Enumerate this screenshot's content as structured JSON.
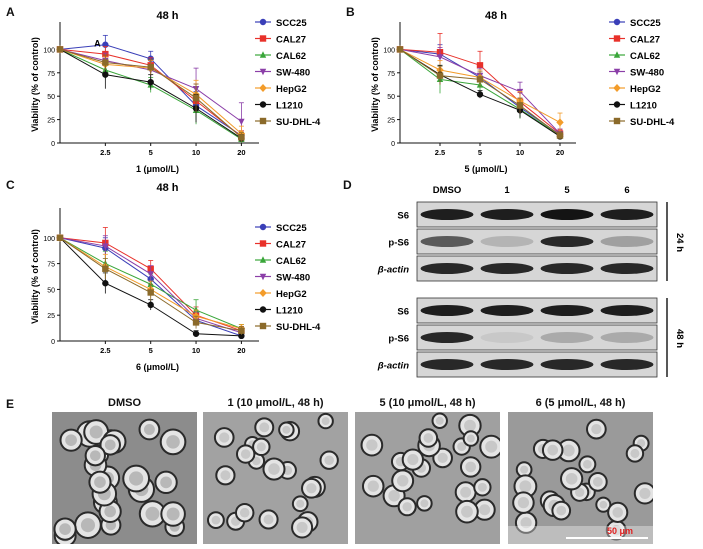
{
  "panels": {
    "A": "A",
    "B": "B",
    "C": "C",
    "D": "D",
    "E": "E"
  },
  "chart_data": [
    {
      "id": "A",
      "type": "line",
      "title": "48 h",
      "xlabel": "1 (μmol/L)",
      "ylabel": "Viability (% of control)",
      "annotation": "A",
      "categories": [
        "0",
        "2.5",
        "5",
        "10",
        "20"
      ],
      "xticks": [
        "2.5",
        "5",
        "10",
        "20"
      ],
      "yticks": [
        0,
        25,
        50,
        75,
        100
      ],
      "ylim": [
        0,
        125
      ],
      "series": [
        {
          "name": "SCC25",
          "color": "#3a3fb8",
          "marker": "circle",
          "values": [
            100,
            105,
            90,
            40,
            8
          ],
          "err": [
            0,
            10,
            8,
            15,
            5
          ]
        },
        {
          "name": "CAL27",
          "color": "#e8312a",
          "marker": "square",
          "values": [
            100,
            95,
            83,
            45,
            7
          ],
          "err": [
            0,
            8,
            8,
            18,
            6
          ]
        },
        {
          "name": "CAL62",
          "color": "#3aa63a",
          "marker": "triangle",
          "values": [
            100,
            78,
            62,
            35,
            4
          ],
          "err": [
            0,
            10,
            8,
            15,
            5
          ]
        },
        {
          "name": "SW-480",
          "color": "#8b3fa8",
          "marker": "triangle-down",
          "values": [
            100,
            88,
            78,
            58,
            23
          ],
          "err": [
            0,
            8,
            10,
            22,
            20
          ]
        },
        {
          "name": "HepG2",
          "color": "#f39c2a",
          "marker": "diamond",
          "values": [
            100,
            84,
            80,
            52,
            10
          ],
          "err": [
            0,
            8,
            8,
            15,
            8
          ]
        },
        {
          "name": "L1210",
          "color": "#111111",
          "marker": "circle",
          "values": [
            100,
            73,
            65,
            37,
            5
          ],
          "err": [
            0,
            15,
            8,
            15,
            4
          ]
        },
        {
          "name": "SU-DHL-4",
          "color": "#8b6a2a",
          "marker": "square",
          "values": [
            100,
            86,
            81,
            48,
            6
          ],
          "err": [
            0,
            8,
            8,
            15,
            5
          ]
        }
      ]
    },
    {
      "id": "B",
      "type": "line",
      "title": "48 h",
      "xlabel": "5 (μmol/L)",
      "ylabel": "Viability (% of control)",
      "categories": [
        "0",
        "2.5",
        "5",
        "10",
        "20"
      ],
      "xticks": [
        "2.5",
        "5",
        "10",
        "20"
      ],
      "yticks": [
        0,
        25,
        50,
        75,
        100
      ],
      "ylim": [
        0,
        125
      ],
      "series": [
        {
          "name": "SCC25",
          "color": "#3a3fb8",
          "marker": "circle",
          "values": [
            100,
            95,
            70,
            38,
            9
          ],
          "err": [
            0,
            10,
            8,
            10,
            4
          ]
        },
        {
          "name": "CAL27",
          "color": "#e8312a",
          "marker": "square",
          "values": [
            100,
            97,
            83,
            44,
            10
          ],
          "err": [
            0,
            20,
            15,
            10,
            4
          ]
        },
        {
          "name": "CAL62",
          "color": "#3aa63a",
          "marker": "triangle",
          "values": [
            100,
            68,
            62,
            36,
            8
          ],
          "err": [
            0,
            15,
            8,
            10,
            4
          ]
        },
        {
          "name": "SW-480",
          "color": "#8b3fa8",
          "marker": "triangle-down",
          "values": [
            100,
            92,
            72,
            55,
            10
          ],
          "err": [
            0,
            10,
            8,
            10,
            5
          ]
        },
        {
          "name": "HepG2",
          "color": "#f39c2a",
          "marker": "diamond",
          "values": [
            100,
            78,
            70,
            45,
            22
          ],
          "err": [
            0,
            10,
            8,
            10,
            10
          ]
        },
        {
          "name": "L1210",
          "color": "#111111",
          "marker": "circle",
          "values": [
            100,
            73,
            52,
            35,
            7
          ],
          "err": [
            0,
            10,
            4,
            8,
            3
          ]
        },
        {
          "name": "SU-DHL-4",
          "color": "#8b6a2a",
          "marker": "square",
          "values": [
            100,
            72,
            68,
            40,
            8
          ],
          "err": [
            0,
            10,
            8,
            8,
            4
          ]
        }
      ]
    },
    {
      "id": "C",
      "type": "line",
      "title": "48 h",
      "xlabel": "6 (μmol/L)",
      "ylabel": "Viability (% of control)",
      "categories": [
        "0",
        "2.5",
        "5",
        "10",
        "20"
      ],
      "xticks": [
        "2.5",
        "5",
        "10",
        "20"
      ],
      "yticks": [
        0,
        25,
        50,
        75,
        100
      ],
      "ylim": [
        0,
        125
      ],
      "series": [
        {
          "name": "SCC25",
          "color": "#3a3fb8",
          "marker": "circle",
          "values": [
            100,
            90,
            60,
            20,
            5
          ],
          "err": [
            0,
            10,
            8,
            5,
            3
          ]
        },
        {
          "name": "CAL27",
          "color": "#e8312a",
          "marker": "square",
          "values": [
            100,
            95,
            70,
            25,
            10
          ],
          "err": [
            0,
            15,
            8,
            8,
            4
          ]
        },
        {
          "name": "CAL62",
          "color": "#3aa63a",
          "marker": "triangle",
          "values": [
            100,
            75,
            55,
            30,
            12
          ],
          "err": [
            0,
            12,
            10,
            10,
            4
          ]
        },
        {
          "name": "SW-480",
          "color": "#8b3fa8",
          "marker": "triangle-down",
          "values": [
            100,
            92,
            65,
            22,
            8
          ],
          "err": [
            0,
            10,
            8,
            6,
            4
          ]
        },
        {
          "name": "HepG2",
          "color": "#f39c2a",
          "marker": "diamond",
          "values": [
            100,
            72,
            50,
            24,
            12
          ],
          "err": [
            0,
            12,
            8,
            6,
            4
          ]
        },
        {
          "name": "L1210",
          "color": "#111111",
          "marker": "circle",
          "values": [
            100,
            56,
            35,
            7,
            5
          ],
          "err": [
            0,
            10,
            5,
            3,
            2
          ]
        },
        {
          "name": "SU-DHL-4",
          "color": "#8b6a2a",
          "marker": "square",
          "values": [
            100,
            70,
            47,
            18,
            10
          ],
          "err": [
            0,
            10,
            8,
            6,
            4
          ]
        }
      ]
    }
  ],
  "blot": {
    "columns": [
      "DMSO",
      "1",
      "5",
      "6"
    ],
    "group_24h": {
      "label": "24 h",
      "rows": [
        "S6",
        "p-S6",
        "β-actin"
      ],
      "intensity": [
        [
          0.9,
          0.9,
          0.95,
          0.9
        ],
        [
          0.6,
          0.15,
          0.85,
          0.25
        ],
        [
          0.85,
          0.85,
          0.85,
          0.85
        ]
      ]
    },
    "group_48h": {
      "label": "48 h",
      "rows": [
        "S6",
        "p-S6",
        "β-actin"
      ],
      "intensity": [
        [
          0.9,
          0.9,
          0.9,
          0.9
        ],
        [
          0.85,
          0.05,
          0.2,
          0.2
        ],
        [
          0.85,
          0.85,
          0.85,
          0.85
        ]
      ]
    }
  },
  "micrographs": [
    {
      "title": "DMSO",
      "bg": "#8c8c8c"
    },
    {
      "title": "1 (10 μmol/L, 48 h)",
      "bg": "#a2a2a2"
    },
    {
      "title": "5 (10 μmol/L, 48 h)",
      "bg": "#a0a0a0"
    },
    {
      "title": "6 (5 μmol/L, 48 h)",
      "bg": "#9a9a9a"
    }
  ],
  "scale_bar": {
    "label": "50 μm",
    "color": "#e02020"
  }
}
